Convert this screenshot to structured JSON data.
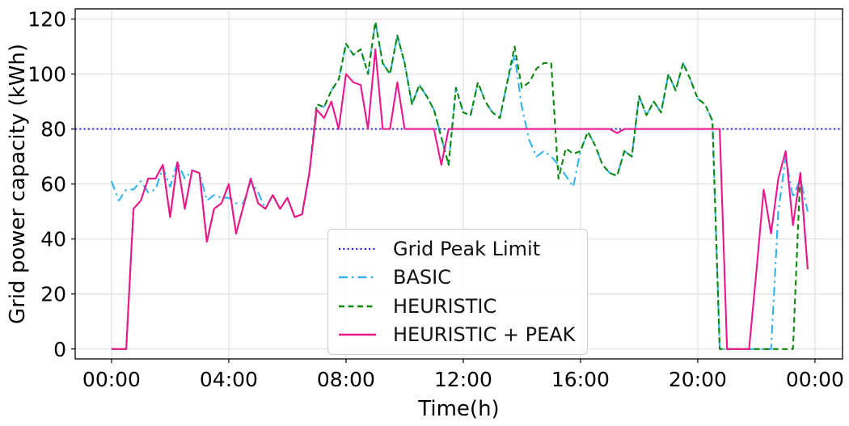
{
  "figure": {
    "background_color": "#ffffff",
    "grid_color": "#d9d9d9",
    "spine_color": "#000000"
  },
  "chart_data": {
    "type": "line",
    "title": "",
    "xlabel": "Time(h)",
    "ylabel": "Grid power capacity (kWh)",
    "grid": true,
    "legend_position": "lower-center-inside",
    "x_axis": {
      "tick_hours": [
        0,
        4,
        8,
        12,
        16,
        20,
        24
      ],
      "tick_labels": [
        "00:00",
        "04:00",
        "08:00",
        "12:00",
        "16:00",
        "20:00",
        "00:00"
      ],
      "xlim_hours": [
        -1.24,
        24.94
      ]
    },
    "y_axis": {
      "ticks": [
        0,
        20,
        40,
        60,
        80,
        100,
        120
      ],
      "ylim": [
        -3.6,
        123.7
      ]
    },
    "start_hour": 0,
    "sample_interval_hours": 0.25,
    "series": [
      {
        "name": "Grid Peak Limit",
        "type": "hline",
        "value": 80,
        "color": "#1111ee",
        "linestyle": "dotted"
      },
      {
        "name": "BASIC",
        "type": "line",
        "color": "#30b4f0",
        "linestyle": "dashdot",
        "values": [
          61,
          54,
          58,
          58,
          61,
          57,
          58,
          66,
          59,
          68,
          62,
          65,
          64,
          54,
          56,
          55,
          55,
          53,
          53,
          61,
          57,
          51,
          56,
          51,
          55,
          48,
          49,
          64,
          89,
          88,
          94,
          98,
          111,
          107,
          109,
          100,
          119,
          104,
          100,
          114,
          104,
          89,
          96,
          92,
          87,
          77,
          67,
          95,
          86,
          85,
          97,
          90,
          86,
          84,
          97,
          107,
          88,
          76,
          70,
          72,
          70,
          67,
          63,
          59,
          72,
          79,
          74,
          67,
          64,
          63,
          72,
          70,
          92,
          85,
          90,
          86,
          100,
          94,
          104,
          98,
          91,
          89,
          83,
          0,
          0,
          0,
          0,
          0,
          0,
          0,
          0,
          50,
          70,
          55,
          62,
          50
        ]
      },
      {
        "name": "HEURISTIC",
        "type": "line",
        "color": "#0b870b",
        "linestyle": "dashed",
        "values": [
          0,
          0,
          0,
          51,
          54,
          62,
          62,
          67,
          48,
          68,
          51,
          65,
          64,
          39,
          51,
          53,
          60,
          42,
          52,
          62,
          53,
          51,
          56,
          51,
          55,
          48,
          49,
          64,
          89,
          88,
          94,
          98,
          111,
          107,
          109,
          100,
          119,
          104,
          100,
          114,
          104,
          89,
          96,
          92,
          87,
          77,
          67,
          95,
          86,
          85,
          97,
          90,
          86,
          84,
          97,
          110,
          95,
          97,
          102,
          104,
          104,
          62,
          73,
          71,
          72,
          79,
          74,
          67,
          64,
          63,
          72,
          70,
          92,
          85,
          90,
          86,
          100,
          94,
          104,
          98,
          91,
          89,
          83,
          0,
          0,
          0,
          0,
          0,
          0,
          0,
          0,
          0,
          0,
          0,
          64,
          29
        ]
      },
      {
        "name": "HEURISTIC + PEAK",
        "type": "line",
        "color": "#ee168d",
        "linestyle": "solid",
        "values": [
          0,
          0,
          0,
          51,
          54,
          62,
          62,
          67,
          48,
          68,
          51,
          65,
          64,
          39,
          51,
          53,
          60,
          42,
          52,
          62,
          53,
          51,
          56,
          51,
          55,
          48,
          49,
          64,
          87,
          84,
          90,
          80,
          100,
          97,
          96,
          80,
          109,
          80,
          80,
          97,
          80,
          80,
          80,
          80,
          80,
          67,
          80,
          80,
          80,
          80,
          80,
          80,
          80,
          80,
          80,
          80,
          80,
          80,
          80,
          80,
          80,
          80,
          80,
          80,
          80,
          80,
          80,
          80,
          80,
          78.5,
          80,
          80,
          80,
          80,
          80,
          80,
          80,
          80,
          80,
          80,
          80,
          80,
          80,
          80,
          0,
          0,
          0,
          0,
          28,
          58,
          42,
          62,
          72,
          45,
          64,
          29
        ]
      }
    ]
  }
}
